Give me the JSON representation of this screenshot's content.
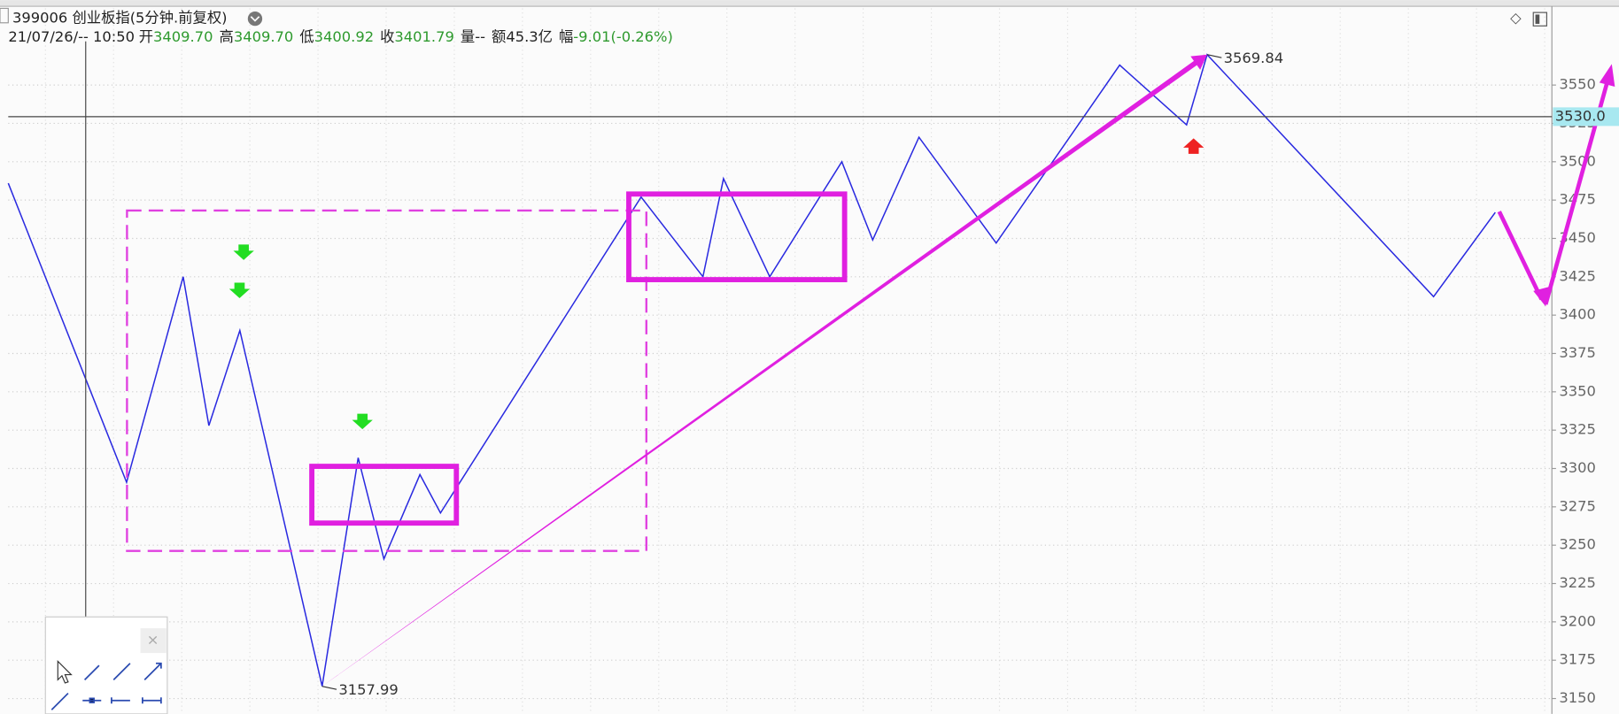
{
  "header": {
    "title": "399006 创业板指(5分钟.前复权)",
    "time": "21/07/26/-- 10:50",
    "info": [
      {
        "label": "开",
        "value": "3409.70"
      },
      {
        "label": "高",
        "value": "3409.70"
      },
      {
        "label": "低",
        "value": "3400.92"
      },
      {
        "label": "收",
        "value": "3401.79"
      },
      {
        "label": "量",
        "value": "--"
      },
      {
        "label": "额",
        "value": "45.3亿"
      },
      {
        "label": "幅",
        "value": "-9.01(-0.26%)"
      }
    ]
  },
  "price_tag": "3530.0",
  "chart_data": {
    "type": "line",
    "color": "#2a2ae0",
    "x": [
      0,
      23,
      34,
      39,
      45,
      61,
      68,
      73,
      80,
      84,
      123,
      135,
      139,
      148,
      162,
      168,
      177,
      192,
      216,
      229,
      233,
      277,
      289
    ],
    "values": [
      3486,
      3291,
      3425,
      3328,
      3390,
      3157.99,
      3307,
      3241,
      3296,
      3271,
      3477,
      3425,
      3489,
      3425,
      3500,
      3449,
      3516,
      3447,
      3563,
      3524,
      3569.84,
      3412,
      3467
    ],
    "xlim": [
      0,
      300
    ],
    "ylim": [
      3140,
      3600
    ],
    "yticks": [
      3150,
      3175,
      3200,
      3225,
      3250,
      3275,
      3300,
      3325,
      3350,
      3375,
      3400,
      3425,
      3450,
      3475,
      3500,
      3525,
      3550
    ],
    "grid": true
  }
}
